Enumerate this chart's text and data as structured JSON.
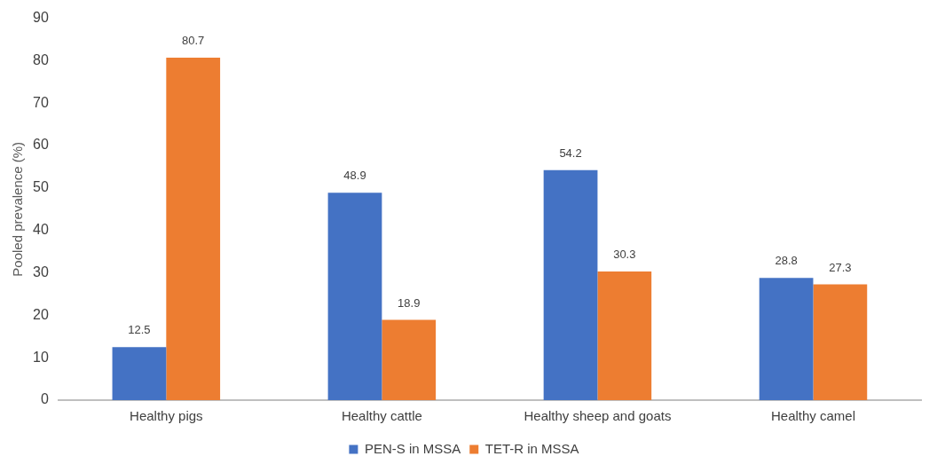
{
  "chart_data": {
    "type": "bar",
    "ylabel": "Pooled prevalence (%)",
    "categories": [
      "Healthy pigs",
      "Healthy cattle",
      "Healthy sheep and goats",
      "Healthy camel"
    ],
    "series": [
      {
        "name": "PEN-S in MSSA",
        "color": "#4472c4",
        "values": [
          12.5,
          48.9,
          54.2,
          28.8
        ]
      },
      {
        "name": "TET-R in MSSA",
        "color": "#ed7d31",
        "values": [
          80.7,
          18.9,
          30.3,
          27.3
        ]
      }
    ],
    "ylim": [
      0,
      90
    ],
    "yticks": [
      0,
      10,
      20,
      30,
      40,
      50,
      60,
      70,
      80,
      90
    ],
    "grid": false,
    "legend": "bottom",
    "data_labels": true
  }
}
